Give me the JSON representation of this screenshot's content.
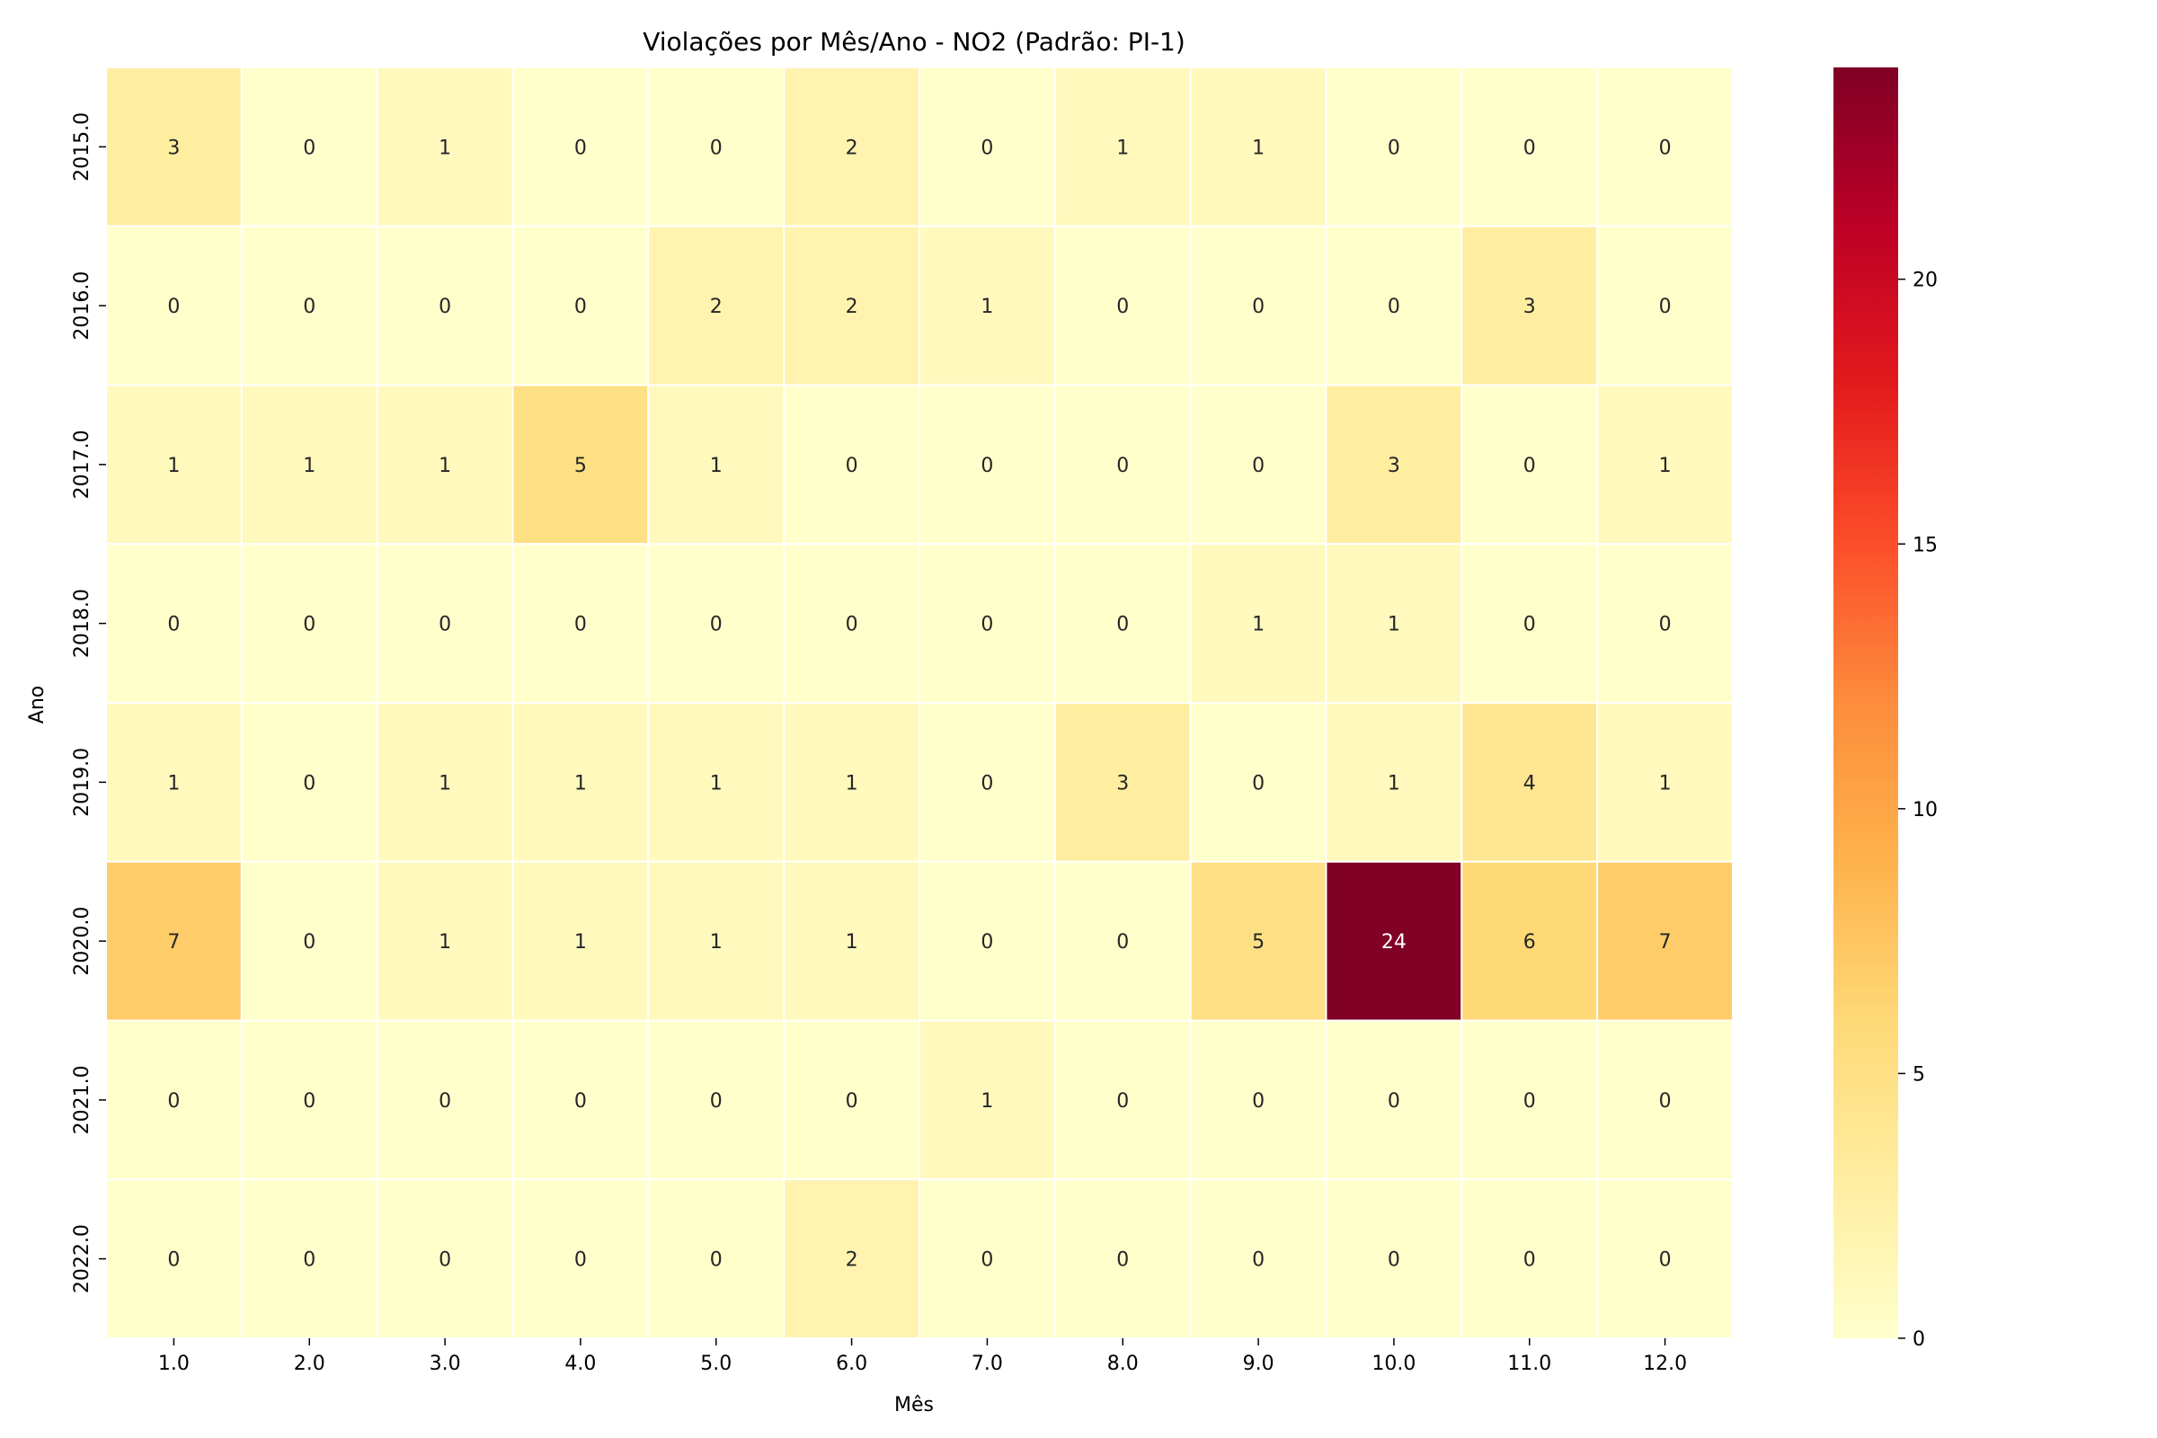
{
  "chart_data": {
    "type": "heatmap",
    "title": "Violações por Mês/Ano - NO2 (Padrão: PI-1)",
    "xlabel": "Mês",
    "ylabel": "Ano",
    "x_categories": [
      "1.0",
      "2.0",
      "3.0",
      "4.0",
      "5.0",
      "6.0",
      "7.0",
      "8.0",
      "9.0",
      "10.0",
      "11.0",
      "12.0"
    ],
    "y_categories": [
      "2015.0",
      "2016.0",
      "2017.0",
      "2018.0",
      "2019.0",
      "2020.0",
      "2021.0",
      "2022.0"
    ],
    "values": [
      [
        3,
        0,
        1,
        0,
        0,
        2,
        0,
        1,
        1,
        0,
        0,
        0
      ],
      [
        0,
        0,
        0,
        0,
        2,
        2,
        1,
        0,
        0,
        0,
        3,
        0
      ],
      [
        1,
        1,
        1,
        5,
        1,
        0,
        0,
        0,
        0,
        3,
        0,
        1
      ],
      [
        0,
        0,
        0,
        0,
        0,
        0,
        0,
        0,
        1,
        1,
        0,
        0
      ],
      [
        1,
        0,
        1,
        1,
        1,
        1,
        0,
        3,
        0,
        1,
        4,
        1
      ],
      [
        7,
        0,
        1,
        1,
        1,
        1,
        0,
        0,
        5,
        24,
        6,
        7
      ],
      [
        0,
        0,
        0,
        0,
        0,
        0,
        1,
        0,
        0,
        0,
        0,
        0
      ],
      [
        0,
        0,
        0,
        0,
        0,
        2,
        0,
        0,
        0,
        0,
        0,
        0
      ]
    ],
    "colormap": "YlOrRd",
    "color_range": [
      0,
      24
    ],
    "colorbar_ticks": [
      0,
      5,
      10,
      15,
      20
    ],
    "colorbar_tick_labels": [
      "0",
      "5",
      "10",
      "15",
      "20"
    ],
    "legend": "colorbar-right",
    "grid": false
  }
}
